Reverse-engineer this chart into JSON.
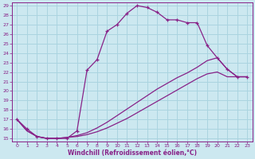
{
  "xlabel": "Windchill (Refroidissement éolien,°C)",
  "bg_color": "#cce8f0",
  "grid_color": "#aad4e0",
  "line_color": "#882288",
  "xlim": [
    -0.5,
    23.5
  ],
  "ylim": [
    14.7,
    29.3
  ],
  "xticks": [
    0,
    1,
    2,
    3,
    4,
    5,
    6,
    7,
    8,
    9,
    10,
    11,
    12,
    13,
    14,
    15,
    16,
    17,
    18,
    19,
    20,
    21,
    22,
    23
  ],
  "yticks": [
    15,
    16,
    17,
    18,
    19,
    20,
    21,
    22,
    23,
    24,
    25,
    26,
    27,
    28,
    29
  ],
  "curve1_x": [
    0,
    1,
    2,
    3,
    4,
    5,
    6,
    7,
    8,
    9,
    10,
    11,
    12,
    13,
    14,
    15,
    16,
    17,
    18,
    19,
    20,
    21,
    22,
    23
  ],
  "curve1_y": [
    17.0,
    16.0,
    15.2,
    15.0,
    15.0,
    15.0,
    15.8,
    22.2,
    23.3,
    26.3,
    27.0,
    28.2,
    29.0,
    28.8,
    28.3,
    27.5,
    27.5,
    27.2,
    27.2,
    24.8,
    23.5,
    22.3,
    21.5,
    21.5
  ],
  "curve2_x": [
    0,
    1,
    2,
    3,
    4,
    5,
    6,
    7,
    8,
    9,
    10,
    11,
    12,
    13,
    14,
    15,
    16,
    17,
    18,
    19,
    20,
    21,
    22,
    23
  ],
  "curve2_y": [
    17.0,
    15.8,
    15.2,
    15.0,
    15.0,
    15.1,
    15.3,
    15.6,
    16.1,
    16.7,
    17.4,
    18.1,
    18.8,
    19.5,
    20.2,
    20.8,
    21.4,
    21.9,
    22.5,
    23.2,
    23.5,
    22.3,
    21.5,
    21.5
  ],
  "curve3_x": [
    0,
    1,
    2,
    3,
    4,
    5,
    6,
    7,
    8,
    9,
    10,
    11,
    12,
    13,
    14,
    15,
    16,
    17,
    18,
    19,
    20,
    21,
    22,
    23
  ],
  "curve3_y": [
    17.0,
    15.8,
    15.2,
    15.0,
    15.0,
    15.1,
    15.2,
    15.4,
    15.7,
    16.1,
    16.6,
    17.1,
    17.7,
    18.3,
    18.9,
    19.5,
    20.1,
    20.7,
    21.3,
    21.8,
    22.0,
    21.5,
    21.5,
    21.5
  ]
}
